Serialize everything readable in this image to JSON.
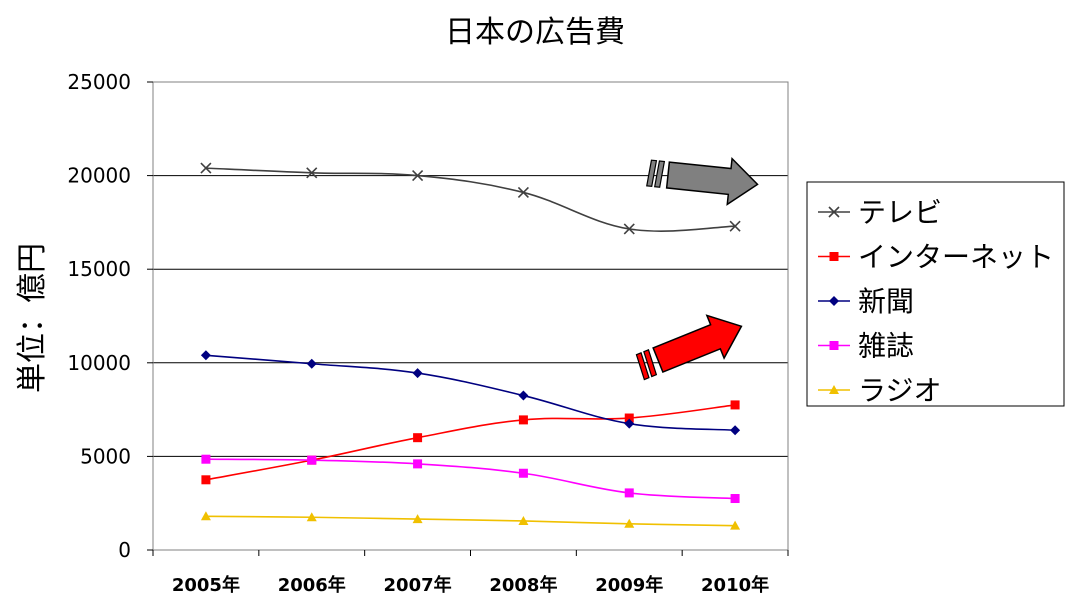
{
  "chart_data": {
    "type": "line",
    "title": "日本の広告費",
    "xlabel": "",
    "ylabel": "単位：億円",
    "categories": [
      "2005年",
      "2006年",
      "2007年",
      "2008年",
      "2009年",
      "2010年"
    ],
    "ylim": [
      0,
      25000
    ],
    "yticks": [
      0,
      5000,
      10000,
      15000,
      20000,
      25000
    ],
    "grid": true,
    "legend_position": "right",
    "series": [
      {
        "name": "テレビ",
        "color": "#404040",
        "marker": "x",
        "values": [
          20400,
          20150,
          20000,
          19100,
          17150,
          17300
        ]
      },
      {
        "name": "インターネット",
        "color": "#ff0000",
        "marker": "square",
        "values": [
          3750,
          4800,
          6000,
          6950,
          7050,
          7750
        ]
      },
      {
        "name": "新聞",
        "color": "#000080",
        "marker": "diamond",
        "values": [
          10400,
          9950,
          9450,
          8250,
          6750,
          6400
        ]
      },
      {
        "name": "雑誌",
        "color": "#ff00ff",
        "marker": "square",
        "values": [
          4850,
          4800,
          4600,
          4100,
          3050,
          2750
        ]
      },
      {
        "name": "ラジオ",
        "color": "#f0c000",
        "marker": "triangle",
        "values": [
          1800,
          1750,
          1650,
          1550,
          1400,
          1300
        ]
      }
    ],
    "annotations": [
      {
        "type": "arrow",
        "color": "#808080",
        "meaning": "decrease-trend"
      },
      {
        "type": "arrow",
        "color": "#ff0000",
        "meaning": "increase-trend"
      }
    ]
  }
}
